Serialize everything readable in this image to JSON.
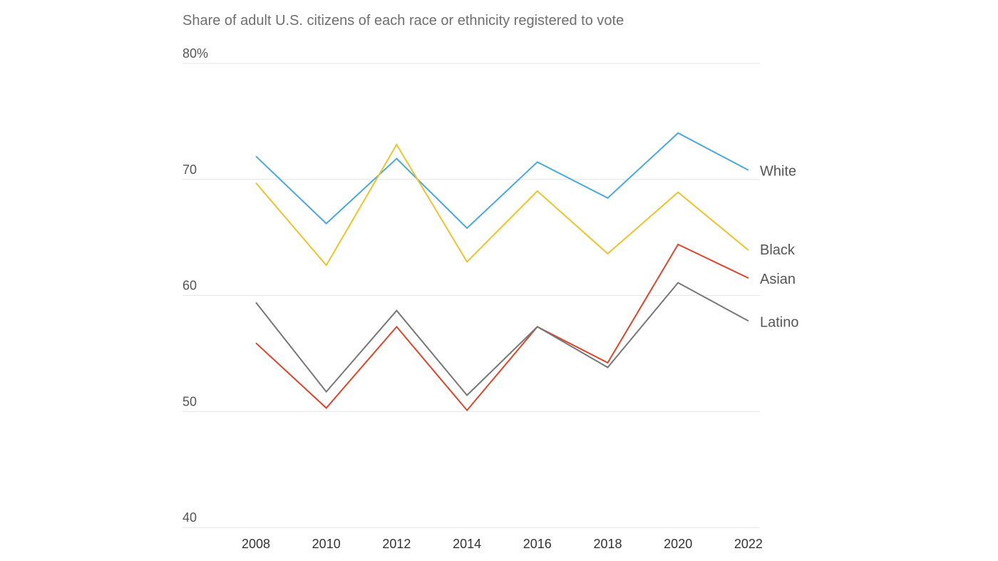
{
  "chart_data": {
    "type": "line",
    "title": "Share of adult U.S. citizens of each race or ethnicity registered to vote",
    "xlabel": "",
    "ylabel": "",
    "x": [
      "2008",
      "2010",
      "2012",
      "2014",
      "2016",
      "2018",
      "2020",
      "2022"
    ],
    "ylim": [
      40,
      80
    ],
    "yticks": [
      {
        "value": 80,
        "label": "80%"
      },
      {
        "value": 70,
        "label": "70"
      },
      {
        "value": 60,
        "label": "60"
      },
      {
        "value": 50,
        "label": "50"
      },
      {
        "value": 40,
        "label": "40"
      }
    ],
    "grid": true,
    "legend": "direct labels at right end of lines",
    "series": [
      {
        "name": "White",
        "color": "#4aa8de",
        "values": [
          72.0,
          66.2,
          71.8,
          65.8,
          71.5,
          68.4,
          74.0,
          70.8
        ]
      },
      {
        "name": "Black",
        "color": "#edc22e",
        "values": [
          69.7,
          62.6,
          73.0,
          62.9,
          69.0,
          63.6,
          68.9,
          63.9
        ]
      },
      {
        "name": "Asian",
        "color": "#d9462c",
        "values": [
          55.9,
          50.3,
          57.3,
          50.1,
          57.3,
          54.2,
          64.4,
          61.5
        ]
      },
      {
        "name": "Latino",
        "color": "#777777",
        "values": [
          59.4,
          51.7,
          58.7,
          51.4,
          57.3,
          53.8,
          61.1,
          57.8
        ]
      }
    ]
  }
}
